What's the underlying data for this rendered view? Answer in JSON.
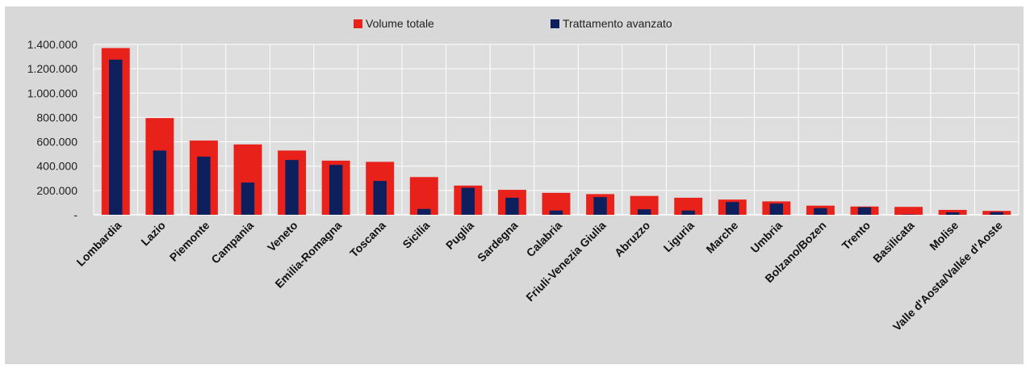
{
  "chart_data": {
    "type": "bar",
    "title": "",
    "xlabel": "",
    "ylabel": "",
    "ylim": [
      0,
      1400000
    ],
    "y_ticks": [
      {
        "value": 0,
        "label": "-"
      },
      {
        "value": 200000,
        "label": "200.000"
      },
      {
        "value": 400000,
        "label": "400.000"
      },
      {
        "value": 600000,
        "label": "600.000"
      },
      {
        "value": 800000,
        "label": "800.000"
      },
      {
        "value": 1000000,
        "label": "1.000.000"
      },
      {
        "value": 1200000,
        "label": "1.200.000"
      },
      {
        "value": 1400000,
        "label": "1.400.000"
      }
    ],
    "grid": true,
    "legend_position": "top",
    "categories": [
      "Lombardia",
      "Lazio",
      "Piemonte",
      "Campania",
      "Veneto",
      "Emilia-Romagna",
      "Toscana",
      "Sicilia",
      "Puglia",
      "Sardegna",
      "Calabria",
      "Friuli-Venezia Giulia",
      "Abruzzo",
      "Liguria",
      "Marche",
      "Umbria",
      "Bolzano/Bozen",
      "Trento",
      "Basilicata",
      "Molise",
      "Valle d'Aosta/Vallée d'Aoste"
    ],
    "series": [
      {
        "name": "Volume totale",
        "color": "#e8221a",
        "values": [
          1370000,
          795000,
          610000,
          578000,
          528000,
          445000,
          435000,
          310000,
          240000,
          205000,
          180000,
          170000,
          155000,
          140000,
          125000,
          110000,
          75000,
          68000,
          65000,
          40000,
          32000
        ]
      },
      {
        "name": "Trattamento avanzato",
        "color": "#0d1f5c",
        "values": [
          1275000,
          528000,
          478000,
          265000,
          450000,
          410000,
          278000,
          48000,
          222000,
          140000,
          35000,
          145000,
          45000,
          35000,
          105000,
          92000,
          55000,
          62000,
          3000,
          20000,
          22000
        ]
      }
    ]
  }
}
